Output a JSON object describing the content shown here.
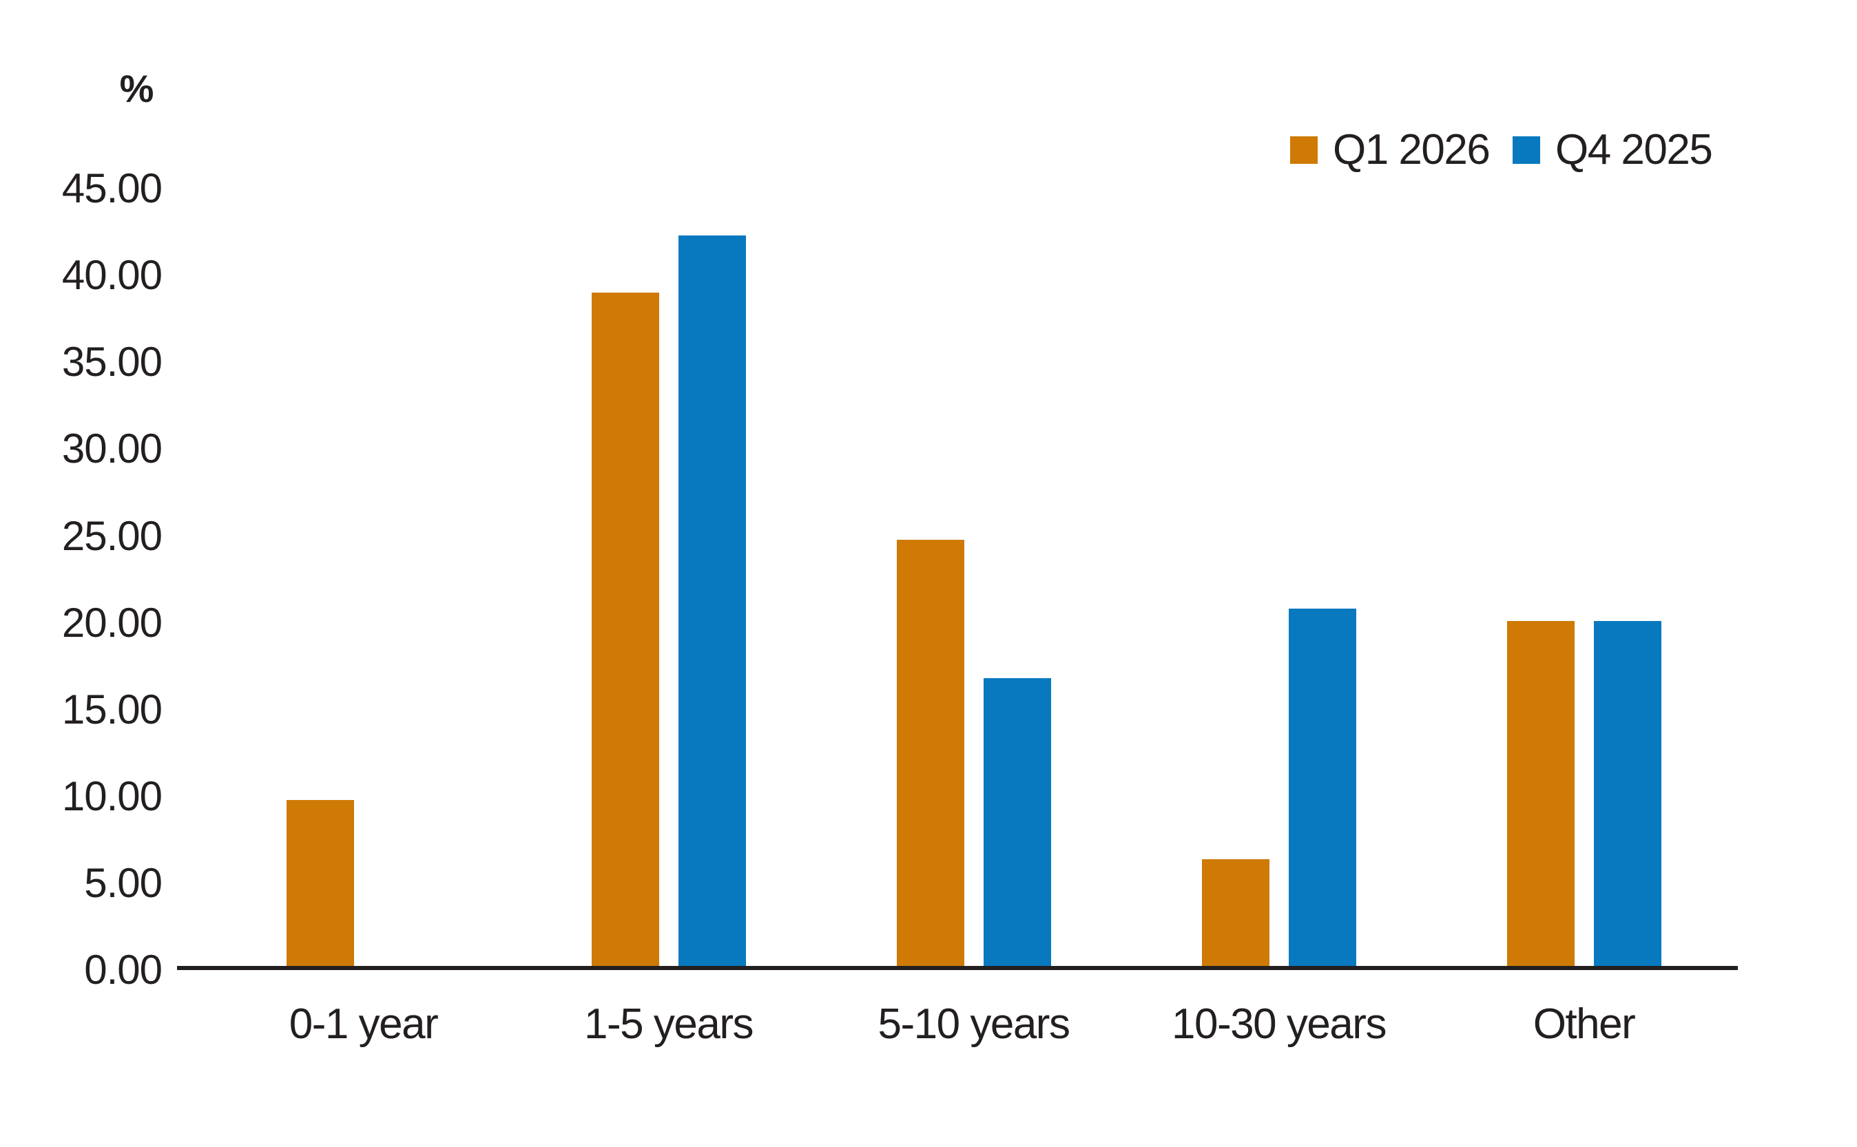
{
  "page": {
    "background_color": "#ffffff",
    "text_color": "#231f20",
    "axis_color": "#231f20"
  },
  "chart_data": {
    "type": "bar",
    "title": "",
    "unit_label": "%",
    "categories": [
      "0-1 year",
      "1-5 years",
      "5-10 years",
      "10-30 years",
      "Other"
    ],
    "series": [
      {
        "name": "Q1 2026",
        "color": "#CE7A05",
        "values": [
          9.8,
          39.0,
          24.8,
          6.4,
          20.1
        ]
      },
      {
        "name": "Q4 2025",
        "color": "#0879BF",
        "values": [
          0.0,
          42.3,
          16.8,
          20.8,
          20.1
        ]
      }
    ],
    "ylim": [
      0,
      45
    ],
    "ytick_step": 5,
    "ytick_labels": [
      "0.00",
      "5.00",
      "10.00",
      "15.00",
      "20.00",
      "25.00",
      "30.00",
      "35.00",
      "40.00",
      "45.00"
    ],
    "grid": false,
    "legend_position": "top-right",
    "missing_bars": [
      {
        "series": "Q4 2025",
        "category": "0-1 year",
        "note": "no bar shown (zero)"
      }
    ]
  }
}
